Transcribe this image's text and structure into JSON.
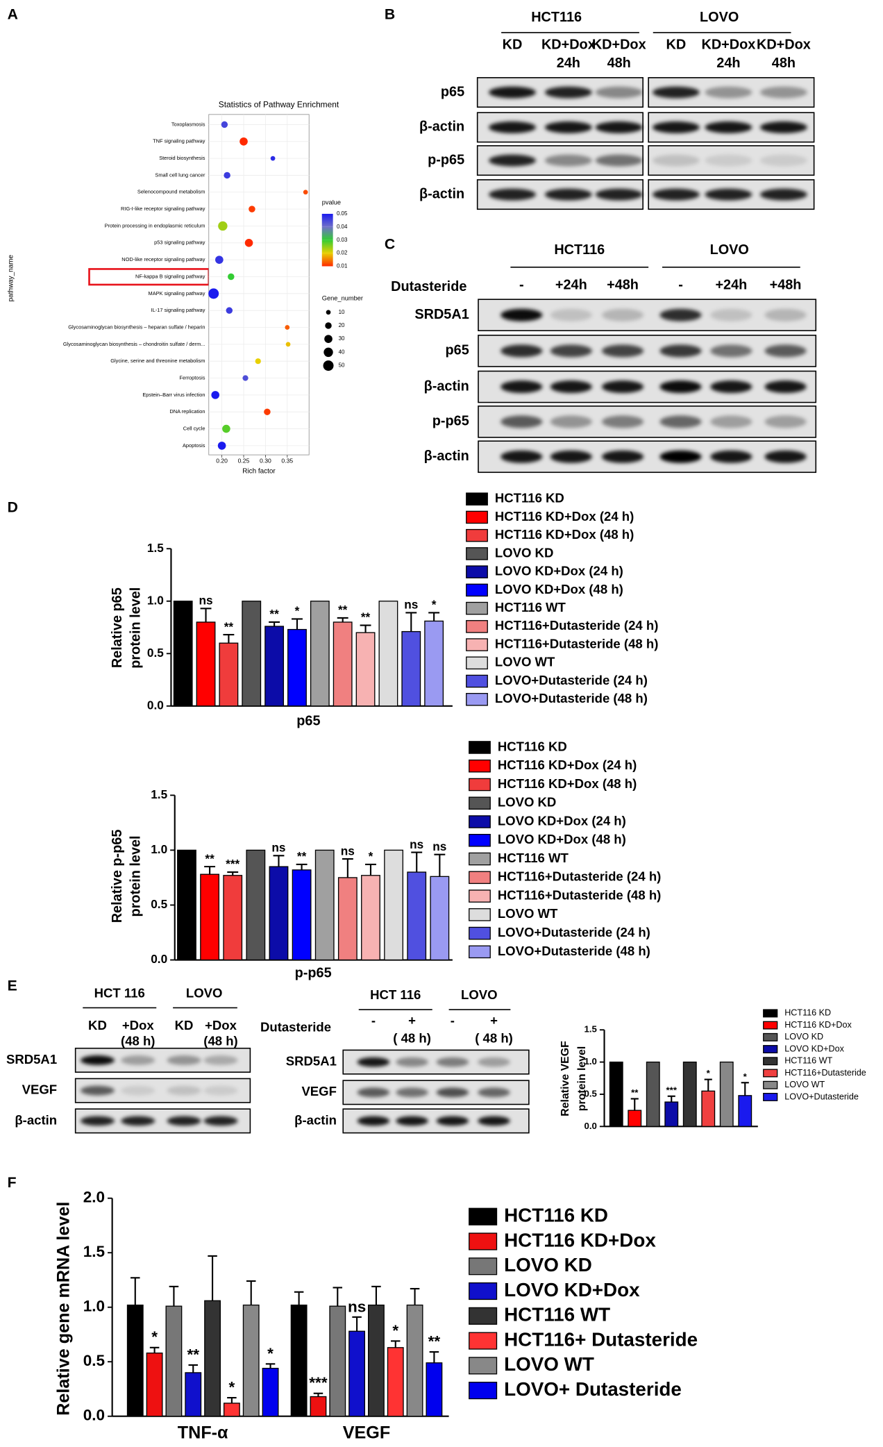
{
  "panel_labels": [
    "A",
    "B",
    "C",
    "D",
    "E",
    "F"
  ],
  "blots": {
    "B": {
      "groups": [
        "HCT116",
        "LOVO"
      ],
      "lanes": [
        [
          "KD"
        ],
        [
          "KD+Dox",
          "24h"
        ],
        [
          "KD+Dox",
          "48h"
        ],
        [
          "KD"
        ],
        [
          "KD+Dox",
          "24h"
        ],
        [
          "KD+Dox",
          "48h"
        ]
      ],
      "rows": [
        "p65",
        "β-actin",
        "p-p65",
        "β-actin"
      ]
    },
    "C": {
      "treatment": "Dutasteride",
      "groups": [
        "HCT116",
        "LOVO"
      ],
      "lanes": [
        [
          "-"
        ],
        [
          "+24h"
        ],
        [
          "+48h"
        ],
        [
          "-"
        ],
        [
          "+24h"
        ],
        [
          "+48h"
        ]
      ],
      "rows": [
        "SRD5A1",
        "p65",
        "β-actin",
        "p-p65",
        "β-actin"
      ]
    },
    "E1": {
      "groups": [
        "HCT 116",
        "LOVO"
      ],
      "lanes": [
        [
          "KD"
        ],
        [
          "+Dox",
          "(48 h)"
        ],
        [
          "KD"
        ],
        [
          "+Dox",
          "(48 h)"
        ]
      ],
      "rows": [
        "SRD5A1",
        "VEGF",
        "β-actin"
      ]
    },
    "E2": {
      "treatment": "Dutasteride",
      "groups": [
        "HCT 116",
        "LOVO"
      ],
      "lanes": [
        [
          "-"
        ],
        [
          "+",
          "( 48 h)"
        ],
        [
          "-"
        ],
        [
          "+",
          "( 48 h)"
        ]
      ],
      "rows": [
        "SRD5A1",
        "VEGF",
        "β-actin"
      ]
    }
  },
  "chart_data": [
    {
      "type": "scatter",
      "title": "Statistics of Pathway Enrichment",
      "xlabel": "Rich factor",
      "ylabel": "pathway_name",
      "categories": [
        "Toxoplasmosis",
        "TNF signaling pathway",
        "Steroid biosynthesis",
        "Small cell lung cancer",
        "Selenocompound metabolism",
        "RIG-I-like receptor signaling pathway",
        "Protein processing in endoplasmic reticulum",
        "p53 signaling pathway",
        "NOD-like receptor signaling pathway",
        "NF-kappa B signaling pathway",
        "MAPK signaling pathway",
        "IL-17 signaling pathway",
        "Glycosaminoglycan biosynthesis – heparan sulfate / heparin",
        "Glycosaminoglycan biosynthesis – chondroitin sulfate / derm...",
        "Glycine, serine and threonine metabolism",
        "Ferroptosis",
        "Epstein–Barr virus infection",
        "DNA replication",
        "Cell cycle",
        "Apoptosis"
      ],
      "x": [
        0.206,
        0.25,
        0.317,
        0.212,
        0.392,
        0.269,
        0.202,
        0.262,
        0.194,
        0.221,
        0.181,
        0.217,
        0.35,
        0.352,
        0.283,
        0.254,
        0.185,
        0.304,
        0.21,
        0.2
      ],
      "pvalue": [
        0.045,
        0.003,
        0.048,
        0.046,
        0.012,
        0.011,
        0.024,
        0.006,
        0.047,
        0.03,
        0.05,
        0.046,
        0.013,
        0.019,
        0.02,
        0.044,
        0.05,
        0.011,
        0.028,
        0.05
      ],
      "gene_number": [
        20,
        30,
        10,
        20,
        10,
        20,
        40,
        30,
        30,
        20,
        50,
        20,
        10,
        10,
        15,
        15,
        30,
        20,
        30,
        30
      ],
      "xlim": [
        0.17,
        0.4
      ],
      "xticks": [
        {
          "value": 0.2,
          "label": "0.20"
        },
        0.25,
        {
          "value": 0.3,
          "label": "0.30"
        },
        0.35
      ],
      "color_title": "pvalue",
      "color_ticks": [
        0.05,
        0.04,
        0.03,
        0.02,
        0.01
      ],
      "color_scale": [
        "#1a1aee",
        "#7070c8",
        "#33cc33",
        "#e8d000",
        "#ff2a00"
      ],
      "size_title": "Gene_number",
      "size_ticks": [
        10,
        20,
        30,
        40,
        50
      ],
      "grid": true
    },
    {
      "type": "bar",
      "ylabel": [
        "Relative p65",
        "protein level"
      ],
      "categories": [
        "p65"
      ],
      "ylim": [
        0,
        1.5
      ],
      "yticks": [
        {
          "value": 0,
          "label": "0.0"
        },
        0.5,
        {
          "value": 1,
          "label": "1.0"
        },
        1.5
      ],
      "series": [
        {
          "name": "HCT116 KD",
          "color": "#000000",
          "values": [
            1.0
          ]
        },
        {
          "name": "HCT116 KD+Dox (24 h)",
          "color": "#ff0000",
          "values": [
            0.8
          ],
          "errors": [
            0.13
          ],
          "annotations": [
            "ns"
          ]
        },
        {
          "name": "HCT116 KD+Dox (48 h)",
          "color": "#f03c3c",
          "values": [
            0.6
          ],
          "errors": [
            0.08
          ],
          "annotations": [
            "**"
          ]
        },
        {
          "name": "LOVO KD",
          "color": "#555555",
          "values": [
            1.0
          ]
        },
        {
          "name": "LOVO KD+Dox (24 h)",
          "color": "#0c0ca8",
          "values": [
            0.76
          ],
          "errors": [
            0.04
          ],
          "annotations": [
            "**"
          ]
        },
        {
          "name": "LOVO KD+Dox (48 h)",
          "color": "#0000ff",
          "values": [
            0.73
          ],
          "errors": [
            0.1
          ],
          "annotations": [
            "*"
          ]
        },
        {
          "name": "HCT116 WT",
          "color": "#a0a0a0",
          "values": [
            1.0
          ]
        },
        {
          "name": "HCT116+Dutasteride (24 h)",
          "color": "#f08080",
          "values": [
            0.8
          ],
          "errors": [
            0.04
          ],
          "annotations": [
            "**"
          ]
        },
        {
          "name": "HCT116+Dutasteride (48 h)",
          "color": "#f7b2b2",
          "values": [
            0.7
          ],
          "errors": [
            0.07
          ],
          "annotations": [
            "**"
          ]
        },
        {
          "name": "LOVO WT",
          "color": "#dddddd",
          "values": [
            1.0
          ]
        },
        {
          "name": "LOVO+Dutasteride (24 h)",
          "color": "#5050e0",
          "values": [
            0.71
          ],
          "errors": [
            0.18
          ],
          "annotations": [
            "ns"
          ]
        },
        {
          "name": "LOVO+Dutasteride (48 h)",
          "color": "#9a9af2",
          "values": [
            0.81
          ],
          "errors": [
            0.08
          ],
          "annotations": [
            "*"
          ]
        }
      ]
    },
    {
      "type": "bar",
      "ylabel": [
        "Relative p-p65",
        "protein level"
      ],
      "categories": [
        "p-p65"
      ],
      "ylim": [
        0,
        1.5
      ],
      "yticks": [
        {
          "value": 0,
          "label": "0.0"
        },
        0.5,
        {
          "value": 1,
          "label": "1.0"
        },
        1.5
      ],
      "series": [
        {
          "name": "HCT116 KD",
          "color": "#000000",
          "values": [
            1.0
          ]
        },
        {
          "name": "HCT116 KD+Dox (24 h)",
          "color": "#ff0000",
          "values": [
            0.78
          ],
          "errors": [
            0.07
          ],
          "annotations": [
            "**"
          ]
        },
        {
          "name": "HCT116 KD+Dox (48 h)",
          "color": "#f03c3c",
          "values": [
            0.77
          ],
          "errors": [
            0.03
          ],
          "annotations": [
            "***"
          ]
        },
        {
          "name": "LOVO KD",
          "color": "#555555",
          "values": [
            1.0
          ]
        },
        {
          "name": "LOVO KD+Dox (24 h)",
          "color": "#0c0ca8",
          "values": [
            0.85
          ],
          "errors": [
            0.1
          ],
          "annotations": [
            "ns"
          ]
        },
        {
          "name": "LOVO KD+Dox (48 h)",
          "color": "#0000ff",
          "values": [
            0.82
          ],
          "errors": [
            0.05
          ],
          "annotations": [
            "**"
          ]
        },
        {
          "name": "HCT116 WT",
          "color": "#a0a0a0",
          "values": [
            1.0
          ]
        },
        {
          "name": "HCT116+Dutasteride (24 h)",
          "color": "#f08080",
          "values": [
            0.75
          ],
          "errors": [
            0.17
          ],
          "annotations": [
            "ns"
          ]
        },
        {
          "name": "HCT116+Dutasteride (48 h)",
          "color": "#f7b2b2",
          "values": [
            0.77
          ],
          "errors": [
            0.1
          ],
          "annotations": [
            "*"
          ]
        },
        {
          "name": "LOVO WT",
          "color": "#dddddd",
          "values": [
            1.0
          ]
        },
        {
          "name": "LOVO+Dutasteride (24 h)",
          "color": "#5050e0",
          "values": [
            0.8
          ],
          "errors": [
            0.18
          ],
          "annotations": [
            "ns"
          ]
        },
        {
          "name": "LOVO+Dutasteride (48 h)",
          "color": "#9a9af2",
          "values": [
            0.76
          ],
          "errors": [
            0.2
          ],
          "annotations": [
            "ns"
          ]
        }
      ]
    },
    {
      "type": "bar",
      "ylabel": [
        "Relative VEGF",
        "protein level"
      ],
      "categories": [
        null
      ],
      "ylim": [
        0,
        1.5
      ],
      "yticks": [
        {
          "value": 0,
          "label": "0.0"
        },
        0.5,
        {
          "value": 1,
          "label": "1.0"
        },
        1.5
      ],
      "series": [
        {
          "name": "HCT116 KD",
          "color": "#000000",
          "values": [
            1.0
          ]
        },
        {
          "name": "HCT116 KD+Dox",
          "color": "#ff0000",
          "values": [
            0.25
          ],
          "errors": [
            0.18
          ],
          "annotations": [
            "**"
          ]
        },
        {
          "name": "LOVO KD",
          "color": "#555555",
          "values": [
            1.0
          ]
        },
        {
          "name": "LOVO KD+Dox",
          "color": "#0c0ca8",
          "values": [
            0.38
          ],
          "errors": [
            0.09
          ],
          "annotations": [
            "***"
          ]
        },
        {
          "name": "HCT116 WT",
          "color": "#333333",
          "values": [
            1.0
          ]
        },
        {
          "name": "HCT116+Dutasteride",
          "color": "#f04040",
          "values": [
            0.55
          ],
          "errors": [
            0.18
          ],
          "annotations": [
            "*"
          ]
        },
        {
          "name": "LOVO WT",
          "color": "#888888",
          "values": [
            1.0
          ]
        },
        {
          "name": "LOVO+Dutasteride",
          "color": "#1a1aee",
          "values": [
            0.48
          ],
          "errors": [
            0.2
          ],
          "annotations": [
            "*"
          ]
        }
      ]
    },
    {
      "type": "bar",
      "ylabel": [
        "Relative gene mRNA level"
      ],
      "categories": [
        "TNF-α",
        "VEGF"
      ],
      "ylim": [
        0,
        2
      ],
      "yticks": [
        {
          "value": 0,
          "label": "0.0"
        },
        0.5,
        {
          "value": 1,
          "label": "1.0"
        },
        1.5,
        {
          "value": 2,
          "label": "2.0"
        }
      ],
      "series": [
        {
          "name": "HCT116 KD",
          "color": "#000000",
          "values": [
            1.02,
            1.02
          ],
          "errors": [
            0.25,
            0.12
          ],
          "annotations": [
            null,
            null
          ]
        },
        {
          "name": "HCT116 KD+Dox",
          "color": "#ee1111",
          "values": [
            0.58,
            0.18
          ],
          "errors": [
            0.05,
            0.03
          ],
          "annotations": [
            "*",
            "***"
          ]
        },
        {
          "name": "LOVO KD",
          "color": "#777777",
          "values": [
            1.01,
            1.01
          ],
          "errors": [
            0.18,
            0.17
          ],
          "annotations": [
            null,
            null
          ]
        },
        {
          "name": "LOVO KD+Dox",
          "color": "#1010cc",
          "values": [
            0.4,
            0.78
          ],
          "errors": [
            0.07,
            0.13
          ],
          "annotations": [
            "**",
            "ns"
          ]
        },
        {
          "name": "HCT116 WT",
          "color": "#333333",
          "values": [
            1.06,
            1.02
          ],
          "errors": [
            0.41,
            0.17
          ],
          "annotations": [
            null,
            null
          ]
        },
        {
          "name": "HCT116+ Dutasteride",
          "color": "#ff3333",
          "values": [
            0.12,
            0.63
          ],
          "errors": [
            0.05,
            0.06
          ],
          "annotations": [
            "*",
            "*"
          ]
        },
        {
          "name": "LOVO WT",
          "color": "#888888",
          "values": [
            1.02,
            1.02
          ],
          "errors": [
            0.22,
            0.15
          ],
          "annotations": [
            null,
            null
          ]
        },
        {
          "name": "LOVO+ Dutasteride",
          "color": "#0000ee",
          "values": [
            0.44,
            0.49
          ],
          "errors": [
            0.04,
            0.1
          ],
          "annotations": [
            "*",
            "**"
          ]
        }
      ]
    }
  ]
}
